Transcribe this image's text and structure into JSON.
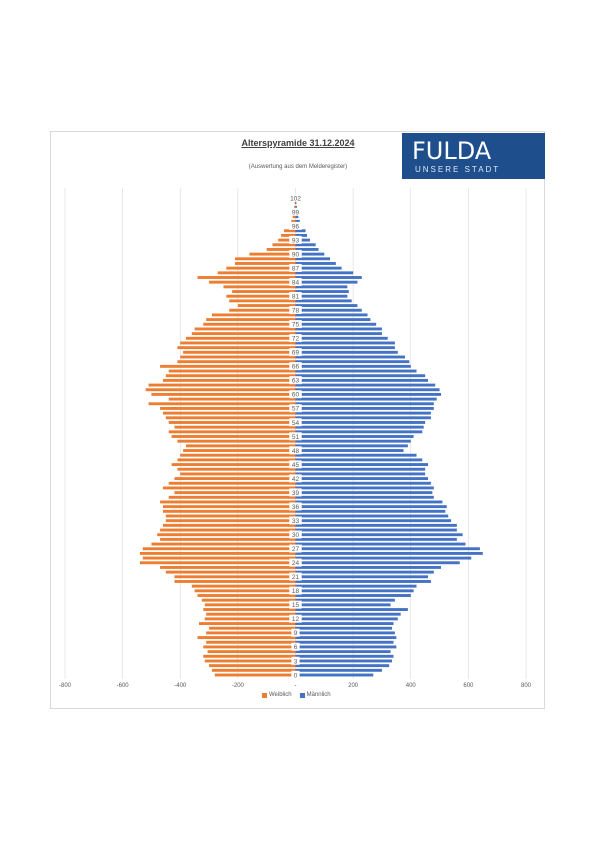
{
  "title": "Alterspyramide 31.12.2024",
  "subtitle": "(Auswertung aus dem Melderegister)",
  "logo": {
    "wordmark": "FULDA",
    "tagline": "UNSERE STADT",
    "background_color": "#1e4f8c"
  },
  "colors": {
    "weiblich": "#ed7d31",
    "maennlich": "#4472c4",
    "gridline": "#d9d9d9"
  },
  "chart_data": {
    "type": "bar",
    "orientation": "horizontal-pyramid",
    "xlim": [
      -800,
      800
    ],
    "x_ticks": [
      -800,
      -600,
      -400,
      -200,
      0,
      200,
      400,
      600,
      800
    ],
    "x_tick_labels": [
      "-800",
      "-600",
      "-400",
      "-200",
      "-",
      "200",
      "400",
      "600",
      "800"
    ],
    "ages": [
      0,
      1,
      2,
      3,
      4,
      5,
      6,
      7,
      8,
      9,
      10,
      11,
      12,
      13,
      14,
      15,
      16,
      17,
      18,
      19,
      20,
      21,
      22,
      23,
      24,
      25,
      26,
      27,
      28,
      29,
      30,
      31,
      32,
      33,
      34,
      35,
      36,
      37,
      38,
      39,
      40,
      41,
      42,
      43,
      44,
      45,
      46,
      47,
      48,
      49,
      50,
      51,
      52,
      53,
      54,
      55,
      56,
      57,
      58,
      59,
      60,
      61,
      62,
      63,
      64,
      65,
      66,
      67,
      68,
      69,
      70,
      71,
      72,
      73,
      74,
      75,
      76,
      77,
      78,
      79,
      80,
      81,
      82,
      83,
      84,
      85,
      86,
      87,
      88,
      89,
      90,
      91,
      92,
      93,
      94,
      95,
      96,
      97,
      98,
      99,
      100,
      101,
      102
    ],
    "age_labels": [
      "0",
      "3",
      "6",
      "9",
      "12",
      "15",
      "18",
      "21",
      "24",
      "27",
      "30",
      "33",
      "36",
      "39",
      "42",
      "45",
      "48",
      "51",
      "54",
      "57",
      "60",
      "63",
      "66",
      "69",
      "72",
      "75",
      "78",
      "81",
      "84",
      "87",
      "90",
      "93",
      "96",
      "99",
      "102"
    ],
    "series": [
      {
        "name": "Weiblich",
        "values": [
          280,
          290,
          300,
          315,
          320,
          305,
          320,
          310,
          340,
          310,
          300,
          335,
          315,
          310,
          320,
          315,
          325,
          340,
          350,
          360,
          420,
          420,
          450,
          470,
          540,
          530,
          540,
          530,
          500,
          470,
          480,
          470,
          460,
          450,
          450,
          460,
          460,
          470,
          440,
          420,
          460,
          440,
          420,
          400,
          410,
          430,
          410,
          400,
          390,
          380,
          410,
          430,
          440,
          420,
          440,
          450,
          460,
          470,
          510,
          440,
          500,
          520,
          510,
          460,
          450,
          440,
          470,
          410,
          400,
          390,
          410,
          400,
          380,
          360,
          350,
          320,
          310,
          290,
          230,
          200,
          230,
          240,
          220,
          250,
          300,
          340,
          270,
          240,
          210,
          210,
          160,
          100,
          80,
          60,
          50,
          40,
          20,
          15,
          10,
          8,
          5,
          3,
          2
        ]
      },
      {
        "name": "Männlich",
        "values": [
          270,
          300,
          325,
          335,
          340,
          330,
          350,
          340,
          350,
          345,
          335,
          340,
          355,
          365,
          390,
          330,
          345,
          400,
          410,
          420,
          470,
          460,
          480,
          505,
          570,
          610,
          650,
          640,
          590,
          560,
          580,
          560,
          560,
          540,
          530,
          520,
          525,
          510,
          480,
          475,
          480,
          470,
          460,
          450,
          450,
          460,
          440,
          420,
          375,
          390,
          400,
          410,
          440,
          445,
          450,
          470,
          470,
          480,
          480,
          490,
          505,
          500,
          485,
          460,
          450,
          420,
          400,
          395,
          380,
          355,
          345,
          345,
          320,
          300,
          300,
          280,
          260,
          250,
          230,
          215,
          195,
          180,
          185,
          180,
          215,
          230,
          200,
          160,
          140,
          120,
          100,
          80,
          70,
          50,
          40,
          35,
          20,
          15,
          10,
          8,
          5,
          3,
          2
        ]
      }
    ],
    "legend_position": "bottom",
    "grid": "vertical"
  }
}
